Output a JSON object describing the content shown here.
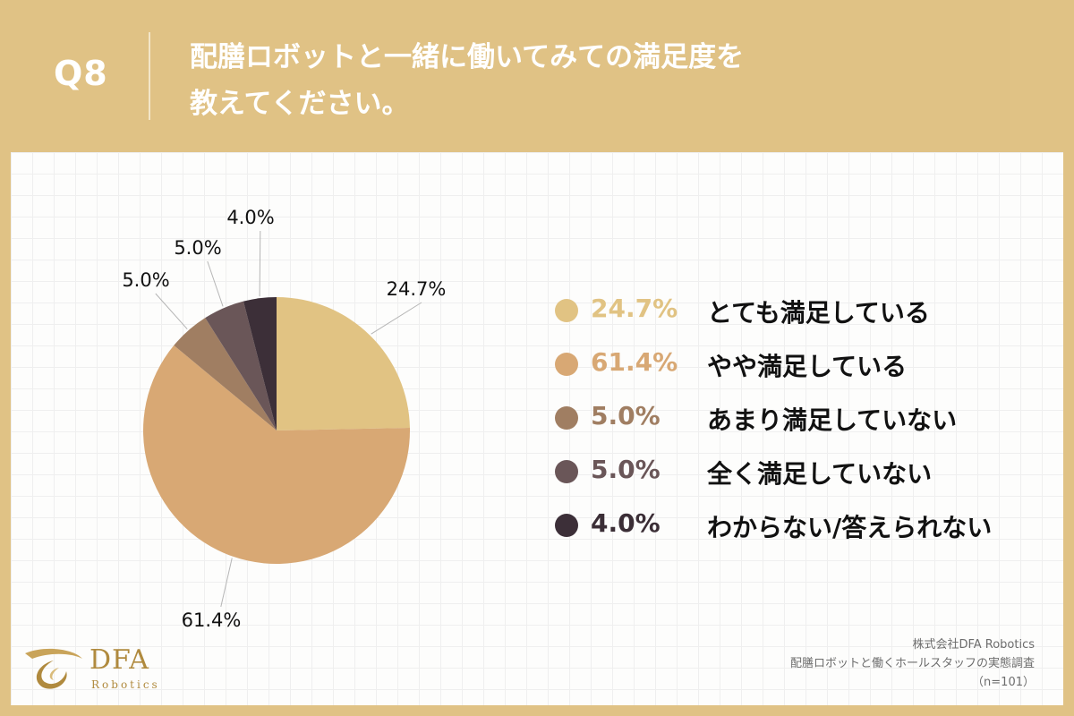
{
  "header": {
    "question_no": "Q8",
    "title_line1": "配膳ロボットと一緒に働いてみての満足度を",
    "title_line2": "教えてください。"
  },
  "colors": {
    "header_bg": "#e0c285",
    "pct_text_dark": "#3b2e36"
  },
  "chart_data": {
    "type": "pie",
    "title": "配膳ロボットと一緒に働いてみての満足度を教えてください。",
    "start_angle": "12 o'clock, clockwise",
    "slices": [
      {
        "label": "とても満足している",
        "value": 24.7,
        "value_label": "24.7%",
        "color": "#e1c383"
      },
      {
        "label": "やや満足している",
        "value": 61.4,
        "value_label": "61.4%",
        "color": "#d8a874"
      },
      {
        "label": "あまり満足していない",
        "value": 5.0,
        "value_label": "5.0%",
        "color": "#a07e62"
      },
      {
        "label": "全く満足していない",
        "value": 5.0,
        "value_label": "5.0%",
        "color": "#6a5658"
      },
      {
        "label": "わからない/答えられない",
        "value": 4.0,
        "value_label": "4.0%",
        "color": "#3c2f38"
      }
    ]
  },
  "logo": {
    "name": "DFA",
    "sub": "Robotics"
  },
  "source": {
    "company": "株式会社DFA Robotics",
    "survey": "配膳ロボットと働くホールスタッフの実態調査",
    "sample": "（n=101）"
  }
}
